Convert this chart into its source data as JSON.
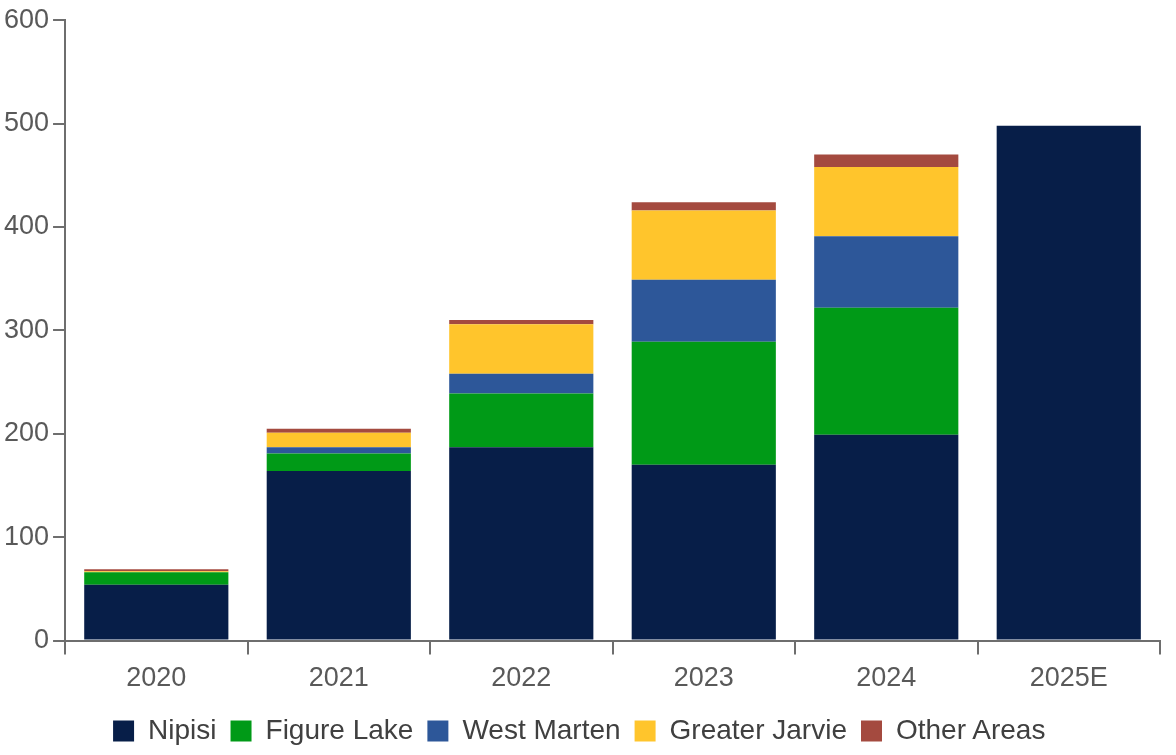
{
  "chart_data": {
    "type": "bar",
    "stacked": true,
    "categories": [
      "2020",
      "2021",
      "2022",
      "2023",
      "2024",
      "2025E"
    ],
    "series": [
      {
        "name": "Nipisi",
        "color": "#071e48",
        "values": [
          54,
          164,
          187,
          170,
          199,
          498
        ]
      },
      {
        "name": "Figure Lake",
        "color": "#009a17",
        "values": [
          12,
          17,
          52,
          119,
          123,
          null
        ]
      },
      {
        "name": "West Marten",
        "color": "#2d5799",
        "values": [
          0,
          6,
          19,
          60,
          69,
          null
        ]
      },
      {
        "name": "Greater Jarvie",
        "color": "#ffc52c",
        "values": [
          1,
          14,
          48,
          67,
          67,
          null
        ]
      },
      {
        "name": "Other Areas",
        "color": "#a44a3f",
        "values": [
          2,
          4,
          4,
          8,
          12,
          null
        ]
      }
    ],
    "ylim": [
      0,
      600
    ],
    "yticks": [
      0,
      100,
      200,
      300,
      400,
      500,
      600
    ],
    "grid": false,
    "legend": "bottom"
  }
}
